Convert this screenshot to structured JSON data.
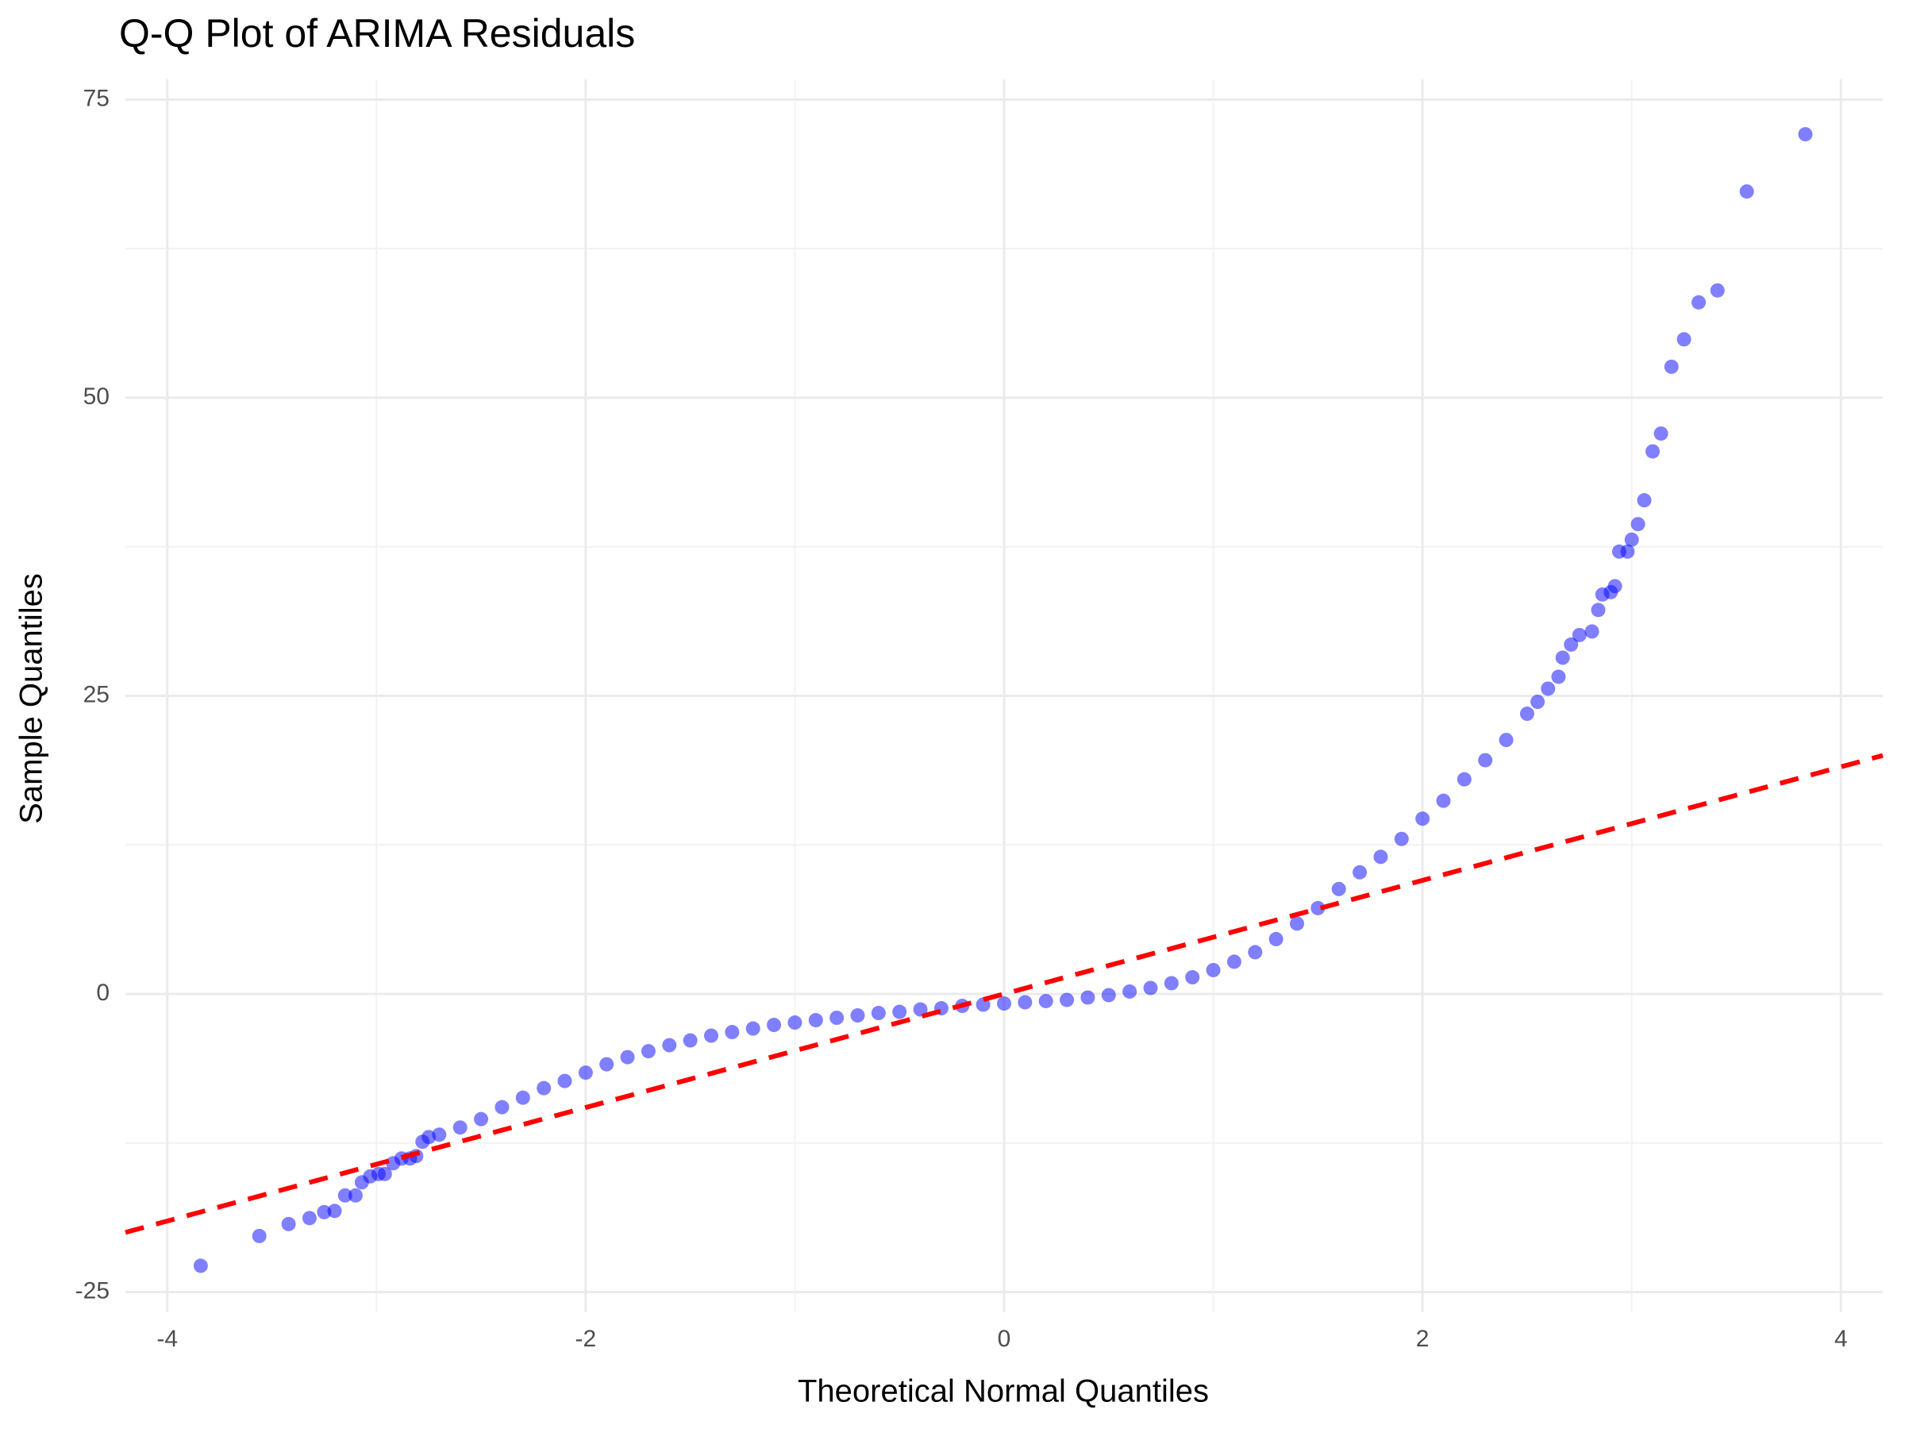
{
  "chart_data": {
    "type": "scatter",
    "title": "Q-Q Plot of ARIMA Residuals",
    "x_label": "Theoretical Normal Quantiles",
    "y_label": "Sample Quantiles",
    "x": [
      -3.84,
      -3.56,
      -3.42,
      -3.32,
      -3.25,
      -3.2,
      -3.15,
      -3.1,
      -3.07,
      -3.03,
      -2.99,
      -2.96,
      -2.92,
      -2.88,
      -2.84,
      -2.81,
      -2.78,
      -2.75,
      -2.7,
      -2.6,
      -2.5,
      -2.4,
      -2.3,
      -2.2,
      -2.1,
      -2.0,
      -1.9,
      -1.8,
      -1.7,
      -1.6,
      -1.5,
      -1.4,
      -1.3,
      -1.2,
      -1.1,
      -1.0,
      -0.9,
      -0.8,
      -0.7,
      -0.6,
      -0.5,
      -0.4,
      -0.3,
      -0.2,
      -0.1,
      0,
      0.1,
      0.2,
      0.3,
      0.4,
      0.5,
      0.6,
      0.7,
      0.8,
      0.9,
      1.0,
      1.1,
      1.2,
      1.3,
      1.4,
      1.5,
      1.6,
      1.7,
      1.8,
      1.9,
      2.0,
      2.1,
      2.2,
      2.3,
      2.4,
      2.5,
      2.55,
      2.6,
      2.65,
      2.67,
      2.71,
      2.75,
      2.81,
      2.84,
      2.86,
      2.9,
      2.92,
      2.94,
      2.98,
      3.0,
      3.03,
      3.06,
      3.1,
      3.14,
      3.19,
      3.25,
      3.32,
      3.41,
      3.55,
      3.83
    ],
    "values": [
      -22.8,
      -20.3,
      -19.3,
      -18.8,
      -18.3,
      -18.2,
      -16.9,
      -16.9,
      -15.8,
      -15.3,
      -15.1,
      -15.1,
      -14.2,
      -13.8,
      -13.8,
      -13.6,
      -12.4,
      -12.0,
      -11.8,
      -11.2,
      -10.5,
      -9.5,
      -8.7,
      -7.9,
      -7.3,
      -6.6,
      -5.9,
      -5.3,
      -4.8,
      -4.3,
      -3.9,
      -3.5,
      -3.2,
      -2.9,
      -2.6,
      -2.4,
      -2.2,
      -2.0,
      -1.8,
      -1.6,
      -1.5,
      -1.3,
      -1.2,
      -1.0,
      -0.9,
      -0.8,
      -0.7,
      -0.6,
      -0.5,
      -0.3,
      -0.1,
      0.2,
      0.5,
      0.9,
      1.4,
      2.0,
      2.7,
      3.5,
      4.6,
      5.9,
      7.2,
      8.8,
      10.2,
      11.5,
      13.0,
      14.7,
      16.2,
      18.0,
      19.6,
      21.3,
      23.5,
      24.5,
      25.6,
      26.6,
      28.2,
      29.3,
      30.1,
      30.4,
      32.2,
      33.5,
      33.7,
      34.2,
      37.1,
      37.1,
      38.1,
      39.4,
      41.4,
      45.5,
      47.0,
      52.6,
      54.9,
      58.0,
      59.0,
      67.3,
      72.1
    ],
    "color": "#0000ff",
    "opacity": 0.5,
    "reference_line": {
      "x": [
        -4.2,
        4.2
      ],
      "values": [
        -20,
        20
      ],
      "color": "#ff0000",
      "dashed": true
    },
    "xlim": [
      -4.2,
      4.2
    ],
    "ylim": [
      -26.7,
      76.7
    ],
    "xticks": [
      -4,
      -2,
      0,
      2,
      4
    ],
    "yticks": [
      -25,
      0,
      25,
      50,
      75
    ],
    "grid": true
  }
}
